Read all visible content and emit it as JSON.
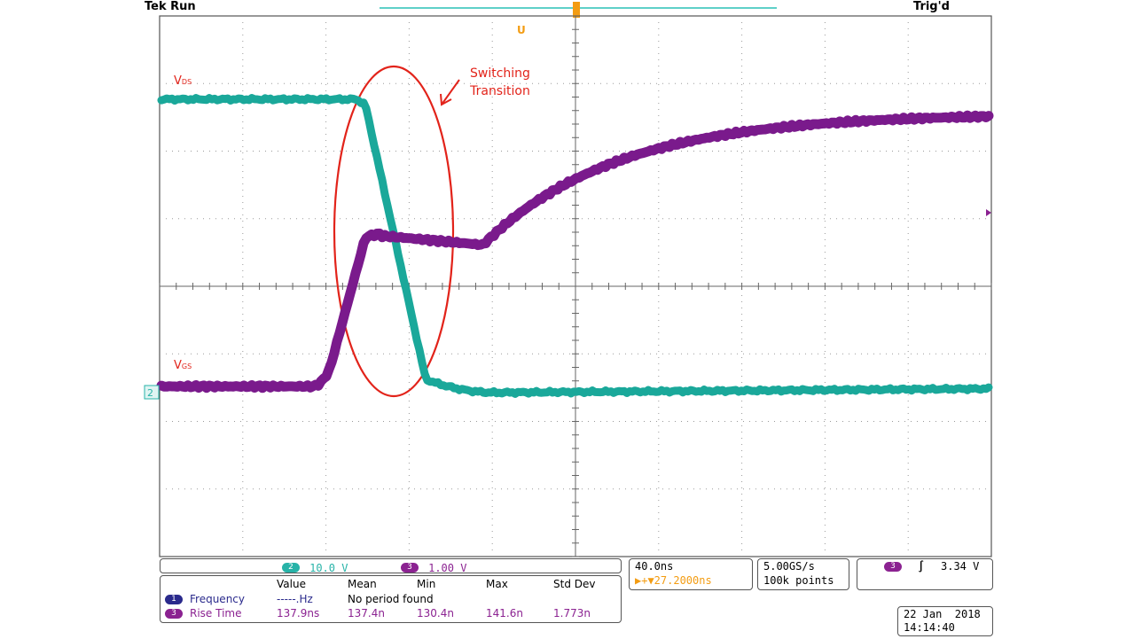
{
  "header": {
    "status": "Tek Run",
    "trigger_state": "Trig'd",
    "trigger_marker": "U"
  },
  "annotation": {
    "line1": "Switching",
    "line2": "Transition"
  },
  "traces": [
    {
      "label_main": "V",
      "label_sub": "DS",
      "color": "#1aa89a"
    },
    {
      "label_main": "V",
      "label_sub": "GS",
      "color": "#7a1a8c"
    }
  ],
  "channel_marker": "2",
  "channels": [
    {
      "num": "2",
      "scale": "10.0 V",
      "color": "#27b3a8"
    },
    {
      "num": "3",
      "scale": "1.00 V",
      "color": "#8b2291"
    }
  ],
  "timebase": {
    "per_div": "40.0ns",
    "delay": "▶+▼27.2000ns"
  },
  "sampling": {
    "rate": "5.00GS/s",
    "points": "100k points"
  },
  "trigger": {
    "channel": "3",
    "slope": "∫",
    "level": "3.34 V"
  },
  "measurements": {
    "headers": [
      "Value",
      "Mean",
      "Min",
      "Max",
      "Std Dev"
    ],
    "rows": [
      {
        "num": "1",
        "name": "Frequency",
        "value": "-----.Hz",
        "mean": "No period found",
        "min": "",
        "max": "",
        "std": ""
      },
      {
        "num": "3",
        "name": "Rise Time",
        "value": "137.9ns",
        "mean": "137.4n",
        "min": "130.4n",
        "max": "141.6n",
        "std": "1.773n"
      }
    ]
  },
  "datetime": {
    "date": "22 Jan  2018",
    "time": "14:14:40"
  }
}
